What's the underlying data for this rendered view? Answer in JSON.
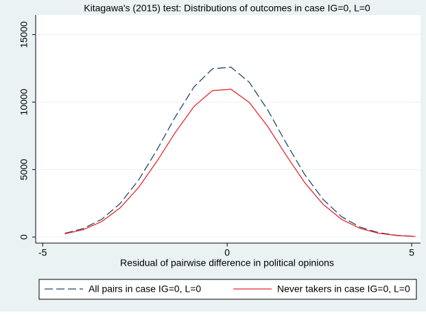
{
  "chart_data": {
    "type": "line",
    "title": "Kitagawa's (2015) test:  Distributions of outcomes in case IG=0, L=0",
    "x_label": "Residual of pairwise difference in political opinions",
    "x": [
      -4.4,
      -3.9,
      -3.4,
      -2.9,
      -2.4,
      -1.9,
      -1.4,
      -0.9,
      -0.4,
      0.1,
      0.6,
      1.1,
      1.6,
      2.1,
      2.6,
      3.1,
      3.6,
      4.1,
      4.6,
      5.1
    ],
    "series": [
      {
        "name": "All pairs in case IG=0, L=0",
        "color": "#1a476f",
        "dash": true,
        "values": [
          271,
          629,
          1317,
          2484,
          4224,
          6472,
          8933,
          11118,
          12465,
          12595,
          11468,
          9411,
          6960,
          4636,
          2787,
          1507,
          735,
          323,
          128,
          46
        ]
      },
      {
        "name": "Never takers in case IG=0, L=0",
        "color": "#e8262b",
        "dash": false,
        "values": [
          236,
          547,
          1146,
          2161,
          3675,
          5631,
          7772,
          9673,
          10845,
          10958,
          9977,
          8188,
          6055,
          4033,
          2425,
          1311,
          639,
          281,
          111,
          40
        ]
      }
    ],
    "xlim": [
      -5.19,
      5.24
    ],
    "xticks": [
      -5,
      0,
      5
    ],
    "ylim": [
      -450,
      16450
    ],
    "yticks": [
      0,
      5000,
      10000,
      15000
    ],
    "grid": true,
    "legend": "bottom"
  }
}
